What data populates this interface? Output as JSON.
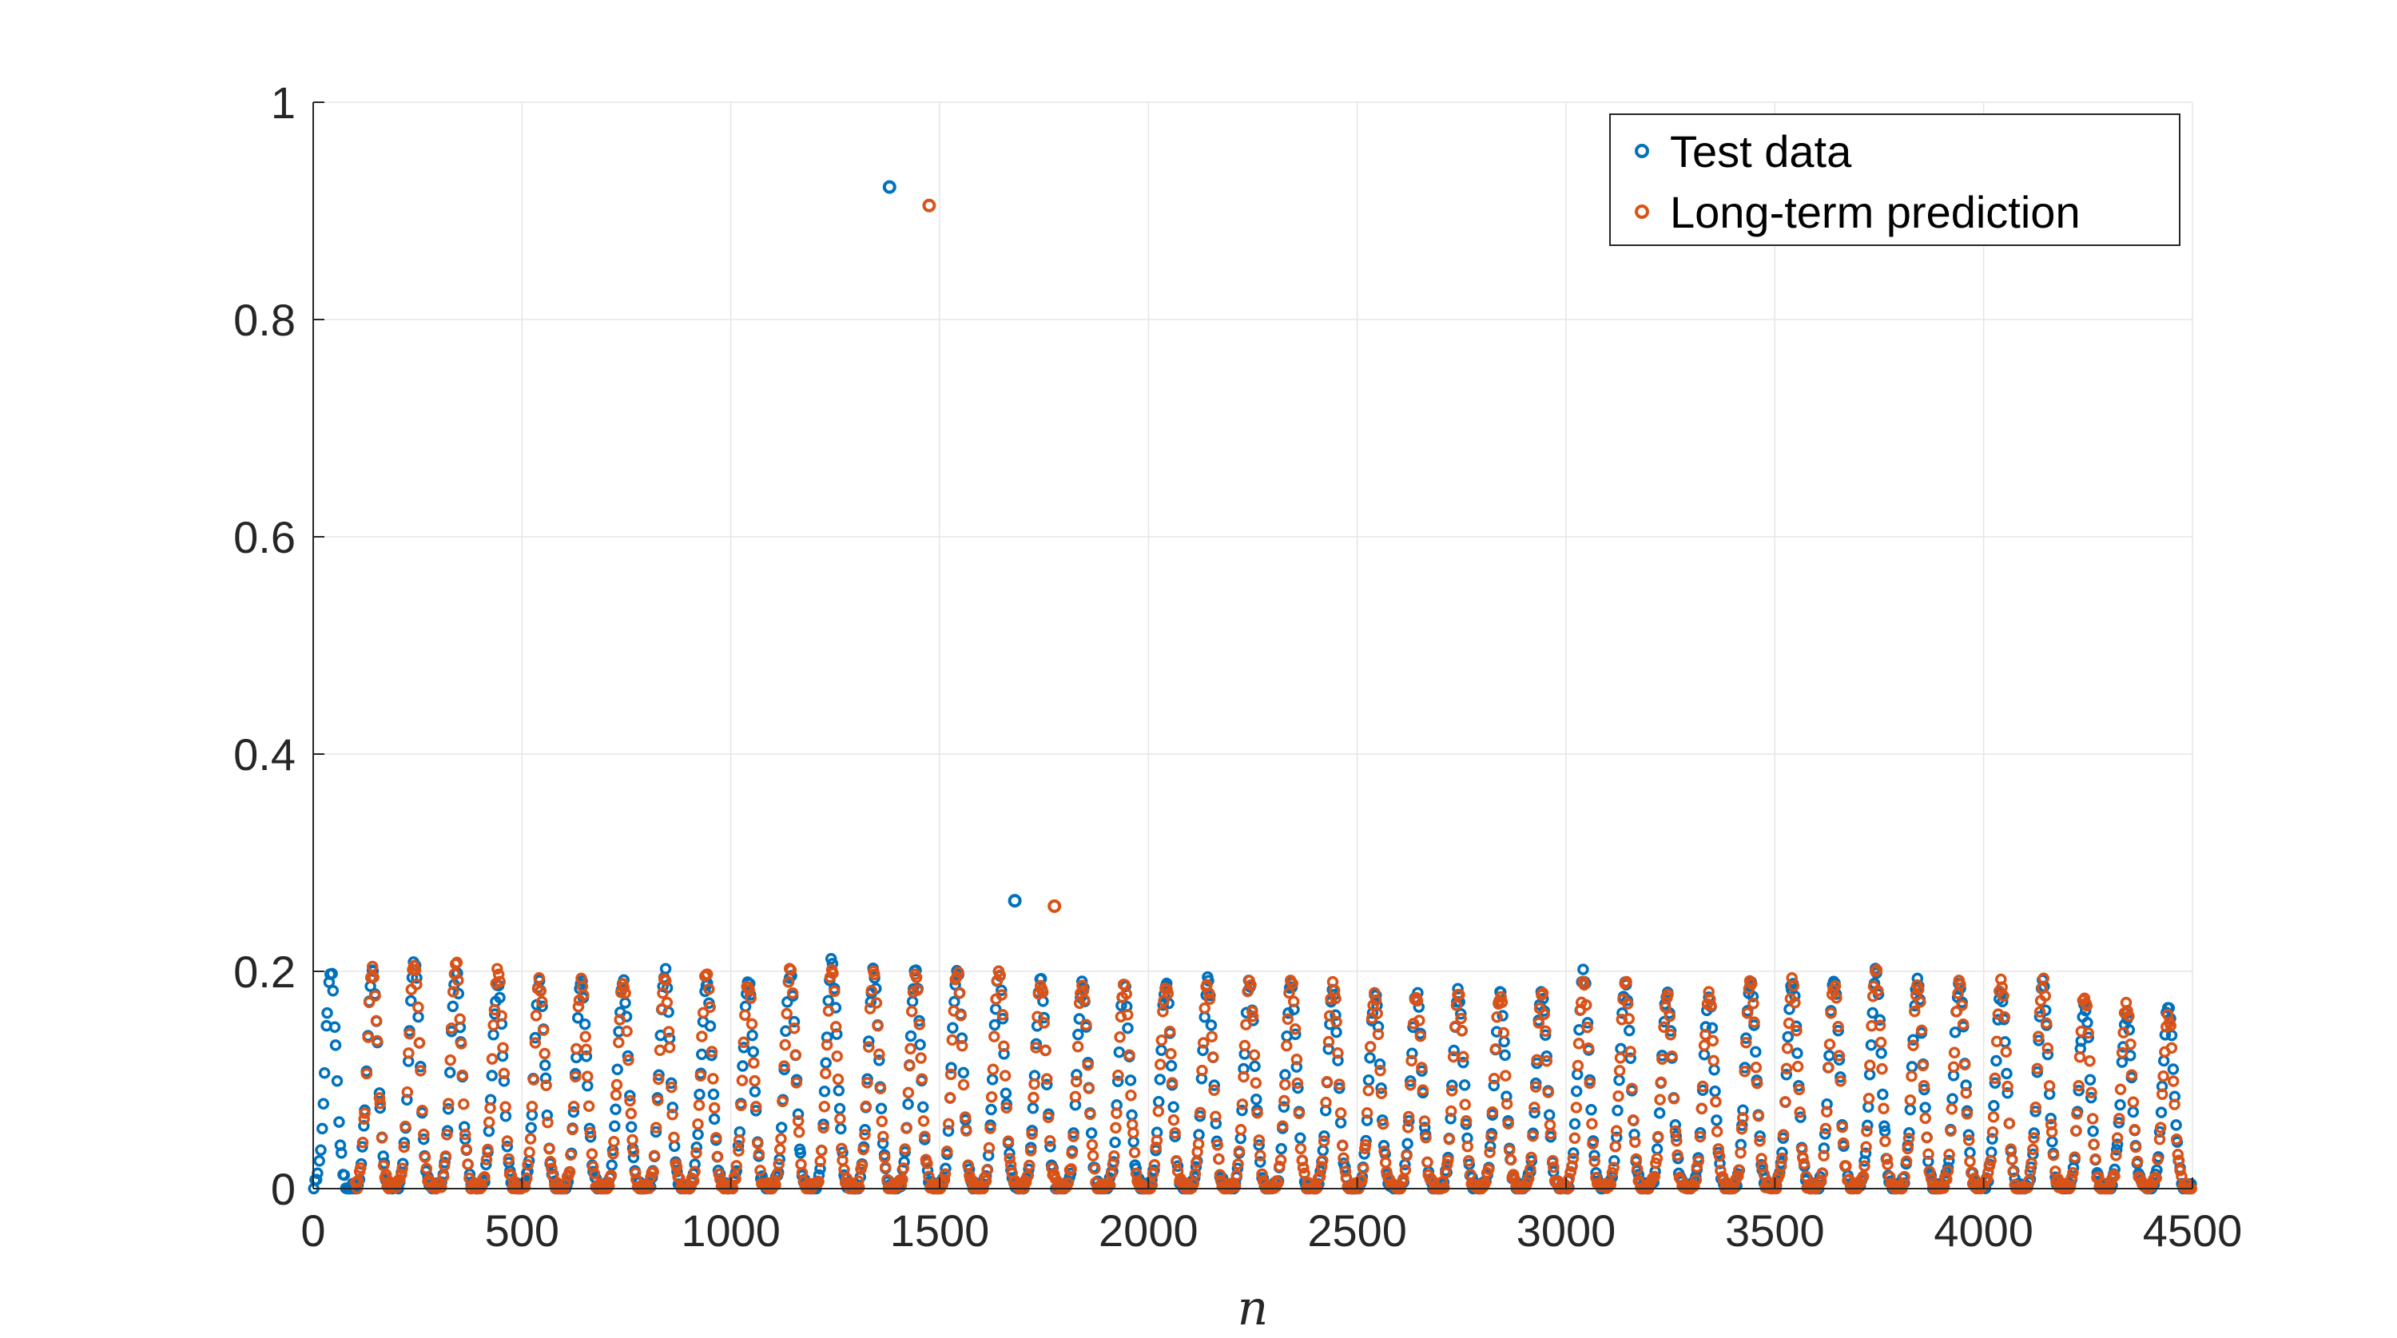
{
  "chart_data": {
    "type": "scatter",
    "title": "",
    "xlabel": "n",
    "ylabel": "",
    "xlim": [
      0,
      4500
    ],
    "ylim": [
      0,
      1
    ],
    "xticks": [
      "0",
      "500",
      "1000",
      "1500",
      "2000",
      "2500",
      "3000",
      "3500",
      "4000",
      "4500"
    ],
    "yticks": [
      "0",
      "0.2",
      "0.4",
      "0.6",
      "0.8",
      "1"
    ],
    "grid": true,
    "legend_position": "top-right",
    "series": [
      {
        "name": "Test data",
        "color": "#0072BD",
        "marker": "circle",
        "x_start": 0,
        "period": 100,
        "count": 45,
        "peaks": [
          0.2,
          0.2,
          0.21,
          0.2,
          0.19,
          0.19,
          0.19,
          0.19,
          0.2,
          0.19,
          0.19,
          0.2,
          0.21,
          0.2,
          0.2,
          0.2,
          0.2,
          0.19,
          0.19,
          0.19,
          0.19,
          0.19,
          0.19,
          0.19,
          0.18,
          0.18,
          0.18,
          0.18,
          0.18,
          0.18,
          0.2,
          0.19,
          0.18,
          0.18,
          0.19,
          0.19,
          0.19,
          0.2,
          0.19,
          0.19,
          0.18,
          0.19,
          0.17,
          0.16,
          0.17
        ],
        "outliers": [
          {
            "x": 1380,
            "y": 0.922
          },
          {
            "x": 1680,
            "y": 0.265
          }
        ]
      },
      {
        "name": "Long-term prediction",
        "color": "#D95319",
        "marker": "circle",
        "x_start": 100,
        "period": 100,
        "count": 44,
        "peaks": [
          0.2,
          0.21,
          0.21,
          0.2,
          0.19,
          0.19,
          0.19,
          0.19,
          0.2,
          0.19,
          0.2,
          0.2,
          0.2,
          0.2,
          0.2,
          0.2,
          0.19,
          0.19,
          0.19,
          0.19,
          0.19,
          0.19,
          0.19,
          0.19,
          0.18,
          0.18,
          0.18,
          0.18,
          0.18,
          0.19,
          0.19,
          0.18,
          0.18,
          0.19,
          0.19,
          0.19,
          0.2,
          0.19,
          0.19,
          0.19,
          0.19,
          0.18,
          0.17,
          0.16
        ],
        "outliers": [
          {
            "x": 1475,
            "y": 0.905
          },
          {
            "x": 1775,
            "y": 0.26
          }
        ]
      }
    ]
  }
}
